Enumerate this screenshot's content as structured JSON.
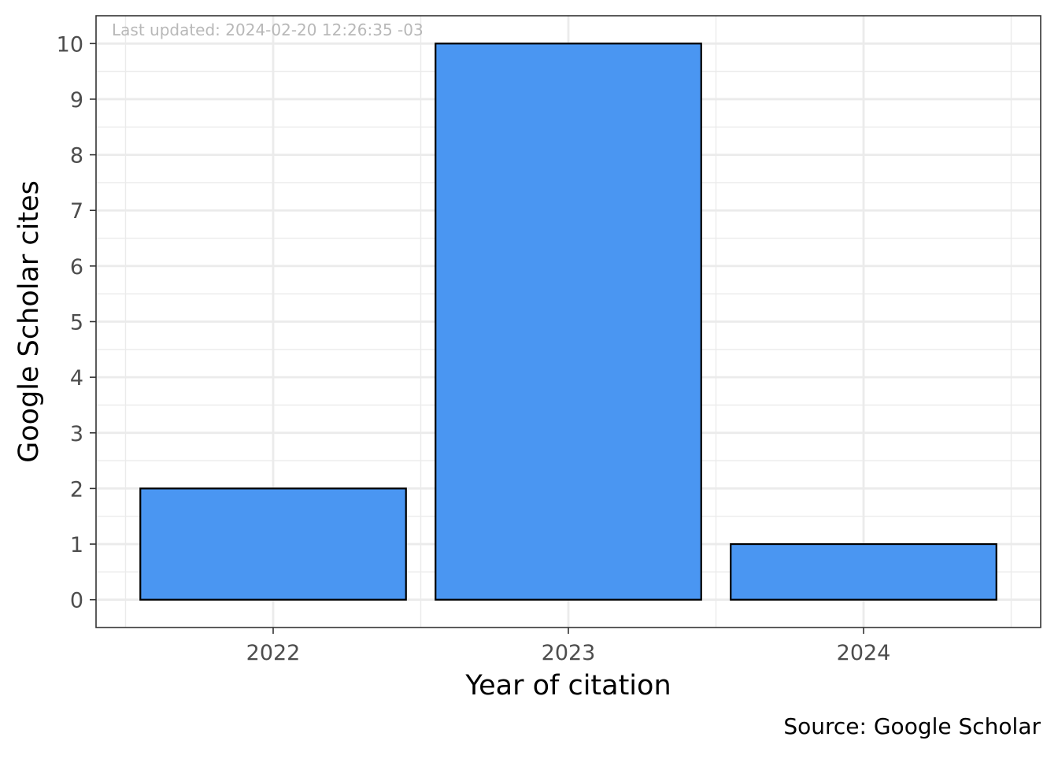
{
  "chart_data": {
    "type": "bar",
    "categories": [
      "2022",
      "2023",
      "2024"
    ],
    "values": [
      2,
      10,
      1
    ],
    "title": "",
    "xlabel": "Year of citation",
    "ylabel": "Google Scholar cites",
    "ylim": [
      -0.5,
      10.5
    ],
    "yticks": [
      0,
      1,
      2,
      3,
      4,
      5,
      6,
      7,
      8,
      9,
      10
    ],
    "caption": "Source: Google Scholar",
    "annotation": "Last updated: 2024-02-20 12:26:35 -03",
    "grid": true,
    "legend": "none",
    "bar_color": "#4A96F2",
    "bar_border_color": "#000000",
    "grid_color": "#EBEBEB",
    "panel_border_color": "#333333"
  }
}
